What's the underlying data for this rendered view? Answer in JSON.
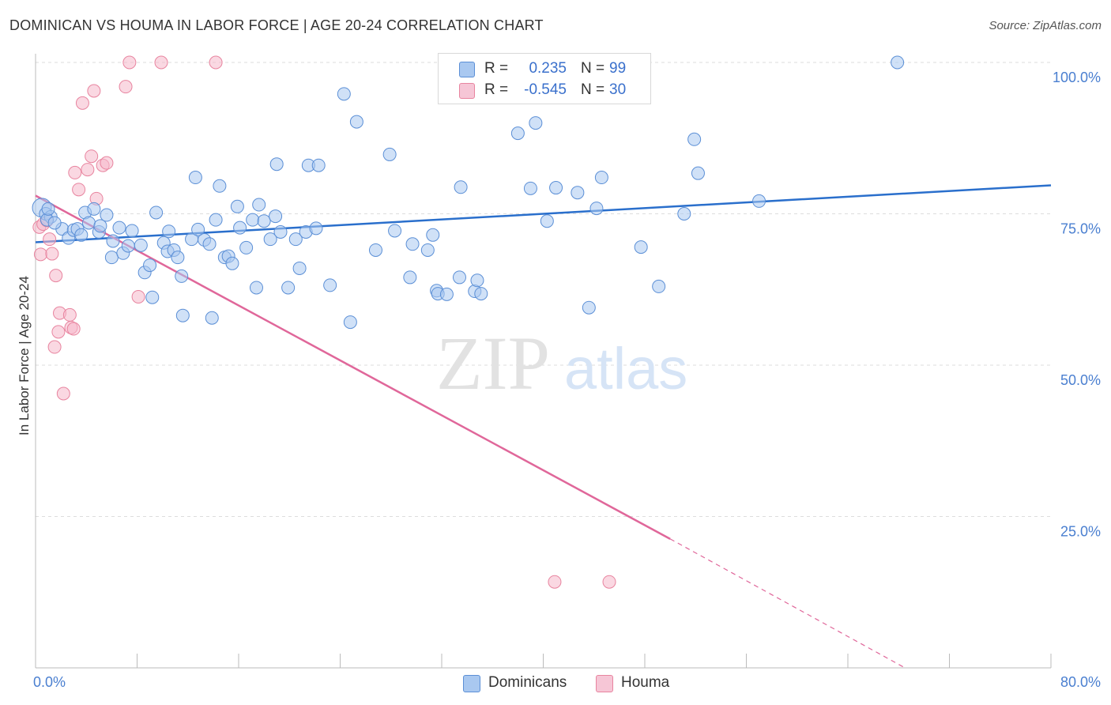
{
  "title": "DOMINICAN VS HOUMA IN LABOR FORCE | AGE 20-24 CORRELATION CHART",
  "source": "Source: ZipAtlas.com",
  "watermark": {
    "zip": "ZIP",
    "atlas": "atlas"
  },
  "colors": {
    "blue_fill": "#a9c8f0",
    "blue_stroke": "#5b8fd6",
    "blue_line": "#2a6fcc",
    "pink_fill": "#f6b8cb",
    "pink_stroke": "#e8849f",
    "pink_line": "#e0679a",
    "tick_text": "#4a7fd0",
    "grid": "#dddddd"
  },
  "legend": {
    "rows": [
      {
        "swatch": "blue",
        "r_label": "R =",
        "r_value": "0.235",
        "n_label": "N =",
        "n_value": "99"
      },
      {
        "swatch": "pink",
        "r_label": "R =",
        "r_value": "-0.545",
        "n_label": "N =",
        "n_value": "30"
      }
    ],
    "bottom": [
      "Dominicans",
      "Houma"
    ]
  },
  "chart_data": {
    "type": "scatter",
    "title": "DOMINICAN VS HOUMA IN LABOR FORCE | AGE 20-24 CORRELATION CHART",
    "xlabel": "",
    "ylabel": "In Labor Force | Age 20-24",
    "xlim": [
      0,
      80
    ],
    "ylim": [
      0,
      100
    ],
    "x_tick_labels": [
      "0.0%",
      "80.0%"
    ],
    "y_tick_labels": [
      "100.0%",
      "75.0%",
      "50.0%",
      "25.0%"
    ],
    "y_ticks": [
      100,
      75,
      50,
      25
    ],
    "grid": true,
    "legend_position": "top-center",
    "series": [
      {
        "name": "Dominicans",
        "color": "blue",
        "trend": {
          "x": [
            0,
            80
          ],
          "y": [
            70.3,
            79.7
          ]
        },
        "points": [
          [
            0.5,
            76
          ],
          [
            0.8,
            75
          ],
          [
            1.2,
            74.5
          ],
          [
            0.9,
            74
          ],
          [
            1.0,
            75.8
          ],
          [
            2.1,
            72.5
          ],
          [
            2.6,
            71
          ],
          [
            3.0,
            72.3
          ],
          [
            3.3,
            72.5
          ],
          [
            3.6,
            71.5
          ],
          [
            3.9,
            75.2
          ],
          [
            4.2,
            73.5
          ],
          [
            4.6,
            75.8
          ],
          [
            5.0,
            72.0
          ],
          [
            5.1,
            73.0
          ],
          [
            5.6,
            74.8
          ],
          [
            6.1,
            70.5
          ],
          [
            6.0,
            67.8
          ],
          [
            6.6,
            72.7
          ],
          [
            6.9,
            68.5
          ],
          [
            7.3,
            69.7
          ],
          [
            7.6,
            72.2
          ],
          [
            8.3,
            69.8
          ],
          [
            8.6,
            65.3
          ],
          [
            9.0,
            66.5
          ],
          [
            9.5,
            75.2
          ],
          [
            9.2,
            61.2
          ],
          [
            10.1,
            70.2
          ],
          [
            10.4,
            68.8
          ],
          [
            10.5,
            72.1
          ],
          [
            10.9,
            69.0
          ],
          [
            11.2,
            67.8
          ],
          [
            11.5,
            64.7
          ],
          [
            11.6,
            58.2
          ],
          [
            12.3,
            70.8
          ],
          [
            12.6,
            81.0
          ],
          [
            12.8,
            72.4
          ],
          [
            13.3,
            70.7
          ],
          [
            13.7,
            70.0
          ],
          [
            13.9,
            57.8
          ],
          [
            14.2,
            74.0
          ],
          [
            14.5,
            79.6
          ],
          [
            14.9,
            67.8
          ],
          [
            15.2,
            68.0
          ],
          [
            15.5,
            66.8
          ],
          [
            15.9,
            76.2
          ],
          [
            16.1,
            72.7
          ],
          [
            16.6,
            69.4
          ],
          [
            17.1,
            74.0
          ],
          [
            17.4,
            62.8
          ],
          [
            17.6,
            76.5
          ],
          [
            18.0,
            73.8
          ],
          [
            18.5,
            70.8
          ],
          [
            18.9,
            74.6
          ],
          [
            19.0,
            83.2
          ],
          [
            19.3,
            72.0
          ],
          [
            19.9,
            62.8
          ],
          [
            20.5,
            70.8
          ],
          [
            20.8,
            66.0
          ],
          [
            21.3,
            72.0
          ],
          [
            21.5,
            83.0
          ],
          [
            22.1,
            72.6
          ],
          [
            22.3,
            83.0
          ],
          [
            23.2,
            63.2
          ],
          [
            24.3,
            94.8
          ],
          [
            24.8,
            57.1
          ],
          [
            25.3,
            90.2
          ],
          [
            26.8,
            69.0
          ],
          [
            27.9,
            84.8
          ],
          [
            28.3,
            72.2
          ],
          [
            29.5,
            64.5
          ],
          [
            29.7,
            70.0
          ],
          [
            30.9,
            69.0
          ],
          [
            31.3,
            71.5
          ],
          [
            31.6,
            62.3
          ],
          [
            31.7,
            61.8
          ],
          [
            32.4,
            61.7
          ],
          [
            33.4,
            64.5
          ],
          [
            33.5,
            79.4
          ],
          [
            34.6,
            62.2
          ],
          [
            34.8,
            64.0
          ],
          [
            35.1,
            61.8
          ],
          [
            38.0,
            88.3
          ],
          [
            39.0,
            79.2
          ],
          [
            39.4,
            90.0
          ],
          [
            40.3,
            73.8
          ],
          [
            41.0,
            79.3
          ],
          [
            42.7,
            78.5
          ],
          [
            43.6,
            59.5
          ],
          [
            44.2,
            75.9
          ],
          [
            44.6,
            81.0
          ],
          [
            47.7,
            69.5
          ],
          [
            49.1,
            63.0
          ],
          [
            51.1,
            75.0
          ],
          [
            51.9,
            87.3
          ],
          [
            52.2,
            81.7
          ],
          [
            57.0,
            77.1
          ],
          [
            67.9,
            100.0
          ],
          [
            1.5,
            73.5
          ]
        ]
      },
      {
        "name": "Houma",
        "color": "pink",
        "trend": {
          "x": [
            0,
            50
          ],
          "y": [
            78.0,
            21.3
          ]
        },
        "trend_dashed": {
          "x": [
            50,
            68.5
          ],
          "y": [
            21.3,
            0
          ]
        },
        "points": [
          [
            0.3,
            72.8
          ],
          [
            0.4,
            68.3
          ],
          [
            0.6,
            73.3
          ],
          [
            0.9,
            73.9
          ],
          [
            1.1,
            70.8
          ],
          [
            1.3,
            68.4
          ],
          [
            1.5,
            53.0
          ],
          [
            1.6,
            64.8
          ],
          [
            1.8,
            55.5
          ],
          [
            1.9,
            58.6
          ],
          [
            2.2,
            45.3
          ],
          [
            2.7,
            58.3
          ],
          [
            2.8,
            56.2
          ],
          [
            3.0,
            56.0
          ],
          [
            3.1,
            81.8
          ],
          [
            3.4,
            79.0
          ],
          [
            3.7,
            93.3
          ],
          [
            4.1,
            82.3
          ],
          [
            4.4,
            84.5
          ],
          [
            4.6,
            95.3
          ],
          [
            4.8,
            77.5
          ],
          [
            5.3,
            83.0
          ],
          [
            5.6,
            83.4
          ],
          [
            7.1,
            96.0
          ],
          [
            7.4,
            100.0
          ],
          [
            8.1,
            61.3
          ],
          [
            9.9,
            100.0
          ],
          [
            14.2,
            100.0
          ],
          [
            40.9,
            14.2
          ],
          [
            45.2,
            14.2
          ]
        ]
      }
    ]
  }
}
